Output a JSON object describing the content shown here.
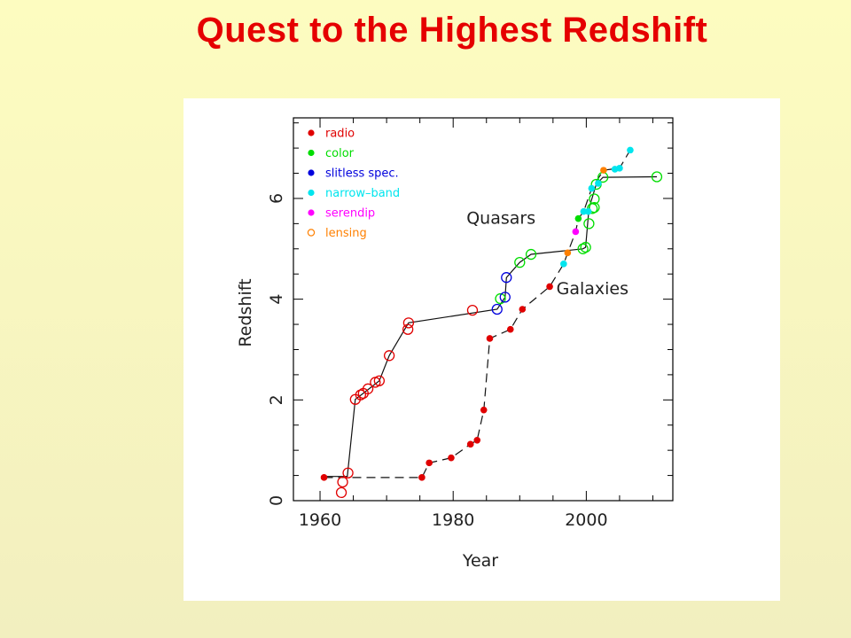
{
  "title": "Quest to the Highest Redshift",
  "chart_data": {
    "type": "scatter",
    "xlabel": "Year",
    "ylabel": "Redshift",
    "xlim": [
      1956,
      2013
    ],
    "ylim": [
      0,
      7.6
    ],
    "x_ticks": [
      1960,
      1980,
      2000
    ],
    "y_ticks": [
      0,
      2,
      4,
      6
    ],
    "grid": false,
    "legend_position": "top-left",
    "legend": [
      {
        "label": "radio",
        "color": "#e00000",
        "marker": "dot"
      },
      {
        "label": "color",
        "color": "#00dd00",
        "marker": "dot"
      },
      {
        "label": "slitless spec.",
        "color": "#0000dd",
        "marker": "dot"
      },
      {
        "label": "narrow–band",
        "color": "#00e5ee",
        "marker": "dot"
      },
      {
        "label": "serendip",
        "color": "#ff00ff",
        "marker": "dot"
      },
      {
        "label": "lensing",
        "color": "#ff8000",
        "marker": "ring"
      }
    ],
    "annotations": [
      {
        "text": "Quasars",
        "x": 1982,
        "y": 5.5
      },
      {
        "text": "Galaxies",
        "x": 1995.5,
        "y": 4.1
      }
    ],
    "series": [
      {
        "name": "Quasars",
        "style": "solid",
        "marker": "ring",
        "points": [
          {
            "x": 1963.2,
            "y": 0.16,
            "c": "#e00000"
          },
          {
            "x": 1963.4,
            "y": 0.37,
            "c": "#e00000"
          },
          {
            "x": 1964.2,
            "y": 0.55,
            "c": "#e00000"
          },
          {
            "x": 1965.3,
            "y": 2.01,
            "c": "#e00000"
          },
          {
            "x": 1966.1,
            "y": 2.1,
            "c": "#e00000"
          },
          {
            "x": 1966.5,
            "y": 2.13,
            "c": "#e00000"
          },
          {
            "x": 1967.2,
            "y": 2.22,
            "c": "#e00000"
          },
          {
            "x": 1968.3,
            "y": 2.35,
            "c": "#e00000"
          },
          {
            "x": 1968.9,
            "y": 2.38,
            "c": "#e00000"
          },
          {
            "x": 1970.4,
            "y": 2.88,
            "c": "#e00000"
          },
          {
            "x": 1973.2,
            "y": 3.4,
            "c": "#e00000"
          },
          {
            "x": 1973.3,
            "y": 3.53,
            "c": "#e00000"
          },
          {
            "x": 1982.9,
            "y": 3.78,
            "c": "#e00000"
          },
          {
            "x": 1986.6,
            "y": 3.8,
            "c": "#0000dd"
          },
          {
            "x": 1987.1,
            "y": 4.01,
            "c": "#00dd00"
          },
          {
            "x": 1987.8,
            "y": 4.04,
            "c": "#0000dd"
          },
          {
            "x": 1988.0,
            "y": 4.43,
            "c": "#0000dd"
          },
          {
            "x": 1990.0,
            "y": 4.73,
            "c": "#00dd00"
          },
          {
            "x": 1991.7,
            "y": 4.89,
            "c": "#00dd00"
          },
          {
            "x": 1999.5,
            "y": 5.0,
            "c": "#00dd00"
          },
          {
            "x": 1999.9,
            "y": 5.03,
            "c": "#00dd00"
          },
          {
            "x": 2000.4,
            "y": 5.5,
            "c": "#00dd00"
          },
          {
            "x": 2000.9,
            "y": 5.8,
            "c": "#00dd00"
          },
          {
            "x": 2001.2,
            "y": 5.82,
            "c": "#00dd00"
          },
          {
            "x": 2001.2,
            "y": 5.99,
            "c": "#00dd00"
          },
          {
            "x": 2001.5,
            "y": 6.28,
            "c": "#00dd00"
          },
          {
            "x": 2002.5,
            "y": 6.42,
            "c": "#00dd00"
          },
          {
            "x": 2010.6,
            "y": 6.43,
            "c": "#00dd00"
          }
        ],
        "line": [
          [
            1960.2,
            0.48
          ],
          [
            1964.1,
            0.48
          ],
          [
            1965.3,
            2.01
          ],
          [
            1966.5,
            2.13
          ],
          [
            1968.9,
            2.38
          ],
          [
            1970.4,
            2.88
          ],
          [
            1973.3,
            3.53
          ],
          [
            1986.6,
            3.8
          ],
          [
            1987.8,
            4.04
          ],
          [
            1988.0,
            4.43
          ],
          [
            1990.0,
            4.73
          ],
          [
            1991.7,
            4.89
          ],
          [
            1999.5,
            5.0
          ],
          [
            1999.9,
            5.03
          ],
          [
            2000.4,
            5.8
          ],
          [
            2001.5,
            6.28
          ],
          [
            2002.5,
            6.42
          ],
          [
            2010.6,
            6.43
          ]
        ]
      },
      {
        "name": "Galaxies",
        "style": "dashed",
        "marker": "dot",
        "points": [
          {
            "x": 1960.6,
            "y": 0.46,
            "c": "#e00000"
          },
          {
            "x": 1975.3,
            "y": 0.46,
            "c": "#e00000"
          },
          {
            "x": 1976.4,
            "y": 0.75,
            "c": "#e00000"
          },
          {
            "x": 1979.7,
            "y": 0.85,
            "c": "#e00000"
          },
          {
            "x": 1982.6,
            "y": 1.12,
            "c": "#e00000"
          },
          {
            "x": 1983.6,
            "y": 1.2,
            "c": "#e00000"
          },
          {
            "x": 1984.6,
            "y": 1.8,
            "c": "#e00000"
          },
          {
            "x": 1985.5,
            "y": 3.22,
            "c": "#e00000"
          },
          {
            "x": 1988.6,
            "y": 3.4,
            "c": "#e00000"
          },
          {
            "x": 1990.4,
            "y": 3.8,
            "c": "#e00000"
          },
          {
            "x": 1994.5,
            "y": 4.25,
            "c": "#e00000"
          },
          {
            "x": 1996.6,
            "y": 4.7,
            "c": "#00e5ee"
          },
          {
            "x": 1997.2,
            "y": 4.92,
            "c": "#ff8000"
          },
          {
            "x": 1998.4,
            "y": 5.34,
            "c": "#ff00ff"
          },
          {
            "x": 1998.8,
            "y": 5.6,
            "c": "#00dd00"
          },
          {
            "x": 1999.6,
            "y": 5.74,
            "c": "#00e5ee"
          },
          {
            "x": 2000.3,
            "y": 5.74,
            "c": "#00e5ee"
          },
          {
            "x": 2000.8,
            "y": 6.2,
            "c": "#00e5ee"
          },
          {
            "x": 2001.8,
            "y": 6.3,
            "c": "#00e5ee"
          },
          {
            "x": 2002.6,
            "y": 6.56,
            "c": "#ff8000"
          },
          {
            "x": 2004.3,
            "y": 6.58,
            "c": "#00e5ee"
          },
          {
            "x": 2005.0,
            "y": 6.6,
            "c": "#00e5ee"
          },
          {
            "x": 2006.6,
            "y": 6.96,
            "c": "#00e5ee"
          }
        ],
        "line": [
          [
            1960.6,
            0.46
          ],
          [
            1975.3,
            0.46
          ],
          [
            1976.4,
            0.75
          ],
          [
            1979.7,
            0.85
          ],
          [
            1982.6,
            1.12
          ],
          [
            1983.6,
            1.2
          ],
          [
            1984.6,
            1.8
          ],
          [
            1985.5,
            3.22
          ],
          [
            1988.6,
            3.4
          ],
          [
            1990.4,
            3.8
          ],
          [
            1994.5,
            4.25
          ],
          [
            1996.6,
            4.7
          ],
          [
            1997.2,
            4.92
          ],
          [
            1998.4,
            5.34
          ],
          [
            1998.8,
            5.6
          ],
          [
            1999.6,
            5.74
          ],
          [
            2000.8,
            6.2
          ],
          [
            2002.6,
            6.56
          ],
          [
            2005.0,
            6.6
          ],
          [
            2006.6,
            6.96
          ]
        ]
      }
    ]
  }
}
